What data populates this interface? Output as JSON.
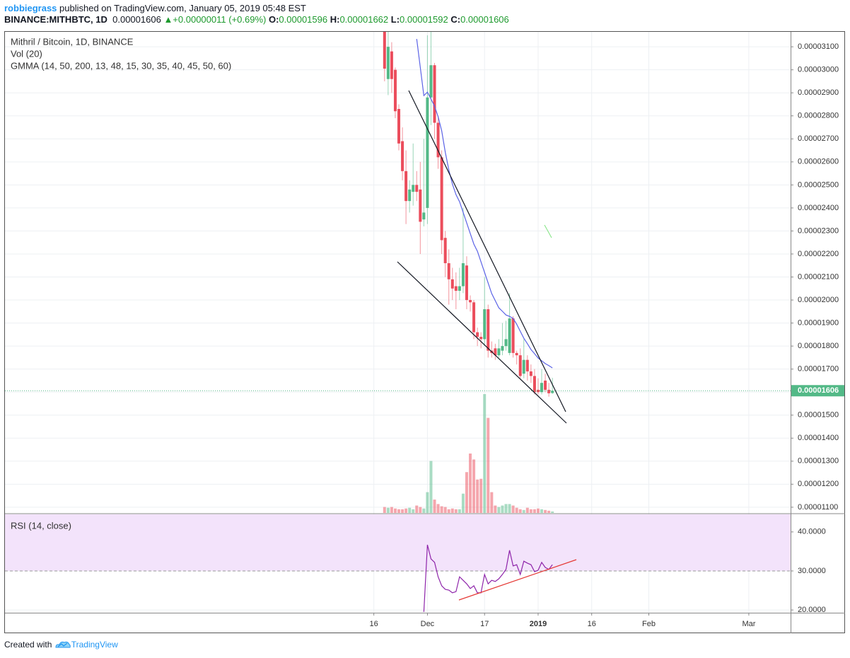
{
  "header": {
    "author": "robbiegrass",
    "published": " published on TradingView.com, January 05, 2019 05:48 EST",
    "symbol": "BINANCE:MITHBTC, 1D",
    "last": "0.00001606",
    "change": "▲+0.00000011 (+0.69%)",
    "ohlc": [
      {
        "label": "O:",
        "value": "0.00001596"
      },
      {
        "label": "H:",
        "value": "0.00001662"
      },
      {
        "label": "L:",
        "value": "0.00001592"
      },
      {
        "label": "C:",
        "value": "0.00001606"
      }
    ]
  },
  "chart_data": [
    {
      "type": "candlestick",
      "title": "Mithril / Bitcoin, 1D, BINANCE",
      "up_color": "#53b987",
      "down_color": "#eb4d5c",
      "grid": true,
      "xlim": [
        -149.3,
        70.7
      ],
      "ylim": [
        1.075e-05,
        3.165e-05
      ],
      "xticks": [
        {
          "value": -46,
          "label": "16"
        },
        {
          "value": -31,
          "label": "Dec"
        },
        {
          "value": -15,
          "label": "17"
        },
        {
          "value": 0,
          "label": "2019"
        },
        {
          "value": 15,
          "label": "16"
        },
        {
          "value": 31,
          "label": "Feb"
        },
        {
          "value": 59,
          "label": "Mar"
        }
      ],
      "yticks": [
        {
          "value": 1.1e-05,
          "label": "0.00001100"
        },
        {
          "value": 1.2e-05,
          "label": "0.00001200"
        },
        {
          "value": 1.3e-05,
          "label": "0.00001300"
        },
        {
          "value": 1.4e-05,
          "label": "0.00001400"
        },
        {
          "value": 1.5e-05,
          "label": "0.00001500"
        },
        {
          "value": 1.6e-05,
          "label": "0.00001600"
        },
        {
          "value": 1.7e-05,
          "label": "0.00001700"
        },
        {
          "value": 1.8e-05,
          "label": "0.00001800"
        },
        {
          "value": 1.9e-05,
          "label": "0.00001900"
        },
        {
          "value": 2e-05,
          "label": "0.00002000"
        },
        {
          "value": 2.1e-05,
          "label": "0.00002100"
        },
        {
          "value": 2.2e-05,
          "label": "0.00002200"
        },
        {
          "value": 2.3e-05,
          "label": "0.00002300"
        },
        {
          "value": 2.4e-05,
          "label": "0.00002400"
        },
        {
          "value": 2.5e-05,
          "label": "0.00002500"
        },
        {
          "value": 2.6e-05,
          "label": "0.00002600"
        },
        {
          "value": 2.7e-05,
          "label": "0.00002700"
        },
        {
          "value": 2.8e-05,
          "label": "0.00002800"
        },
        {
          "value": 2.9e-05,
          "label": "0.00002900"
        },
        {
          "value": 3e-05,
          "label": "0.00003000"
        },
        {
          "value": 3.1e-05,
          "label": "0.00003100"
        }
      ],
      "x": [
        -43,
        -42,
        -41,
        -40,
        -39,
        -38,
        -37,
        -36,
        -35,
        -34,
        -33,
        -32,
        -31,
        -30,
        -29,
        -28,
        -27,
        -26,
        -25,
        -24,
        -23,
        -22,
        -21,
        -20,
        -19,
        -18,
        -17,
        -16,
        -15,
        -14,
        -13,
        -12,
        -11,
        -10,
        -9,
        -8,
        -7,
        -6,
        -5,
        -4,
        -3,
        -2,
        -1,
        0,
        1,
        2,
        3,
        4
      ],
      "open": [
        3.2e-05,
        2.96e-05,
        3.08e-05,
        3e-05,
        2.83e-05,
        2.69e-05,
        2.56e-05,
        2.43e-05,
        2.47e-05,
        2.5e-05,
        2.48e-05,
        2.35e-05,
        2.4e-05,
        2.88e-05,
        3.02e-05,
        2.77e-05,
        2.62e-05,
        2.27e-05,
        2.16e-05,
        2.09e-05,
        2.06e-05,
        2.04e-05,
        2.06e-05,
        2.15e-05,
        2e-05,
        1.99e-05,
        1.86e-05,
        1.84e-05,
        1.83e-05,
        1.96e-05,
        1.78e-05,
        1.79e-05,
        1.76e-05,
        1.78e-05,
        1.8e-05,
        1.77e-05,
        1.92e-05,
        1.77e-05,
        1.76e-05,
        1.68e-05,
        1.74e-05,
        1.69e-05,
        1.67e-05,
        1.61e-05,
        1.6e-05,
        1.65e-05,
        1.61e-05,
        1.596e-05
      ],
      "high": [
        3.3e-05,
        3.18e-05,
        3.12e-05,
        3.01e-05,
        2.85e-05,
        2.75e-05,
        2.65e-05,
        2.52e-05,
        2.68e-05,
        2.56e-05,
        2.6e-05,
        2.7e-05,
        3.15e-05,
        3.2e-05,
        3.03e-05,
        2.8e-05,
        2.65e-05,
        2.3e-05,
        2.22e-05,
        2.14e-05,
        2.12e-05,
        2.14e-05,
        2.4e-05,
        2.19e-05,
        2.02e-05,
        2e-05,
        1.88e-05,
        1.86e-05,
        2.1e-05,
        1.98e-05,
        1.82e-05,
        1.81e-05,
        1.83e-05,
        1.9e-05,
        1.91e-05,
        2.03e-05,
        1.93e-05,
        1.78e-05,
        1.79e-05,
        1.83e-05,
        1.76e-05,
        1.72e-05,
        1.7e-05,
        1.66e-05,
        1.7e-05,
        1.68e-05,
        1.64e-05,
        1.662e-05
      ],
      "low": [
        2.95e-05,
        2.89e-05,
        2.9e-05,
        2.79e-05,
        2.65e-05,
        2.52e-05,
        2.33e-05,
        2.38e-05,
        2.41e-05,
        2.43e-05,
        2.2e-05,
        2.32e-05,
        2.33e-05,
        2.76e-05,
        2.7e-05,
        2.57e-05,
        2.2e-05,
        2.1e-05,
        1.98e-05,
        2e-05,
        1.96e-05,
        2e-05,
        2.03e-05,
        1.96e-05,
        1.95e-05,
        1.83e-05,
        1.8e-05,
        1.79e-05,
        1.8e-05,
        1.75e-05,
        1.75e-05,
        1.74e-05,
        1.75e-05,
        1.76e-05,
        1.78e-05,
        1.76e-05,
        1.75e-05,
        1.72e-05,
        1.66e-05,
        1.66e-05,
        1.65e-05,
        1.64e-05,
        1.59e-05,
        1.59e-05,
        1.59e-05,
        1.6e-05,
        1.58e-05,
        1.592e-05
      ],
      "close": [
        3.005e-05,
        3.1e-05,
        2.96e-05,
        2.82e-05,
        2.68e-05,
        2.56e-05,
        2.43e-05,
        2.48e-05,
        2.5e-05,
        2.47e-05,
        2.34e-05,
        2.38e-05,
        2.88e-05,
        3.02e-05,
        2.77e-05,
        2.62e-05,
        2.26e-05,
        2.16e-05,
        2.09e-05,
        2.05e-05,
        2.04e-05,
        2.06e-05,
        2.16e-05,
        2e-05,
        1.99e-05,
        1.86e-05,
        1.84e-05,
        1.83e-05,
        1.96e-05,
        1.78e-05,
        1.77e-05,
        1.76e-05,
        1.79e-05,
        1.8e-05,
        1.83e-05,
        1.92e-05,
        1.77e-05,
        1.76e-05,
        1.67e-05,
        1.74e-05,
        1.69e-05,
        1.67e-05,
        1.6e-05,
        1.6e-05,
        1.64e-05,
        1.61e-05,
        1.595e-05,
        1.606e-05
      ],
      "volume": {
        "name": "Vol (20)",
        "values": [
          8,
          7,
          8,
          6,
          5,
          5,
          6,
          7,
          5,
          10,
          8,
          6,
          28,
          70,
          18,
          12,
          9,
          8,
          5,
          6,
          5,
          5,
          26,
          55,
          80,
          72,
          45,
          46,
          160,
          128,
          28,
          10,
          8,
          10,
          12,
          12,
          10,
          7,
          5,
          4,
          7,
          5,
          5,
          6,
          5,
          4,
          3,
          2
        ]
      },
      "series": [
        {
          "name": "GMMA (14, 50, 200, 13, 48, 15, 30, 35, 40, 45, 50, 60)",
          "color": "#5b63e6",
          "x": [
            -34,
            -33,
            -32,
            -31,
            -30,
            -29,
            -28,
            -27,
            -26,
            -25,
            -24,
            -23,
            -22,
            -21,
            -20,
            -19,
            -18,
            -17,
            -16,
            -15,
            -14,
            -13,
            -12,
            -11,
            -10,
            -9,
            -8,
            -7,
            -6,
            -5,
            -4,
            -3,
            -2,
            -1,
            0,
            1,
            2,
            3,
            4
          ],
          "values": [
            3.134e-05,
            3.011e-05,
            2.888e-05,
            2.903e-05,
            2.873e-05,
            2.842e-05,
            2.796e-05,
            2.735e-05,
            2.642e-05,
            2.565e-05,
            2.504e-05,
            2.458e-05,
            2.427e-05,
            2.381e-05,
            2.335e-05,
            2.289e-05,
            2.243e-05,
            2.212e-05,
            2.166e-05,
            2.12e-05,
            2.074e-05,
            2.028e-05,
            1.997e-05,
            1.966e-05,
            1.951e-05,
            1.935e-05,
            1.929e-05,
            1.92e-05,
            1.895e-05,
            1.864e-05,
            1.834e-05,
            1.81e-05,
            1.785e-05,
            1.767e-05,
            1.748e-05,
            1.736e-05,
            1.724e-05,
            1.715e-05,
            1.705e-05
          ]
        }
      ]
    },
    {
      "type": "line",
      "xlim": [
        -149.3,
        70.7
      ],
      "ylim": [
        19.3,
        44.5
      ],
      "grid": true,
      "band": [
        30,
        70
      ],
      "band_color": "#f3e3fb",
      "yticks": [
        {
          "value": 20,
          "label": "20.0000"
        },
        {
          "value": 30,
          "label": "30.0000"
        },
        {
          "value": 40,
          "label": "40.0000"
        }
      ],
      "series": [
        {
          "name": "RSI (14, close)",
          "color": "#8e24aa",
          "x": [
            -32,
            -31,
            -30,
            -29,
            -28,
            -27,
            -26,
            -25,
            -24,
            -23,
            -22,
            -21,
            -20,
            -19,
            -18,
            -17,
            -16,
            -15,
            -14,
            -13,
            -12,
            -11,
            -10,
            -9,
            -8,
            -7,
            -6,
            -5,
            -4,
            -3,
            -2,
            -1,
            0,
            1,
            2,
            3,
            4
          ],
          "values": [
            19.5,
            36.7,
            33.1,
            32.2,
            28.5,
            26.2,
            25.3,
            25.1,
            24.4,
            24.7,
            28.5,
            27.6,
            26.7,
            25.5,
            26.2,
            24.4,
            24.4,
            29.1,
            26.7,
            27.6,
            27.3,
            28.0,
            29.1,
            30.4,
            35.3,
            31.3,
            31.6,
            29.1,
            32.5,
            32.0,
            31.6,
            29.8,
            30.2,
            32.2,
            30.9,
            30.4,
            31.6
          ]
        }
      ]
    }
  ],
  "footer": {
    "created": "Created with",
    "brand": "TradingView"
  }
}
